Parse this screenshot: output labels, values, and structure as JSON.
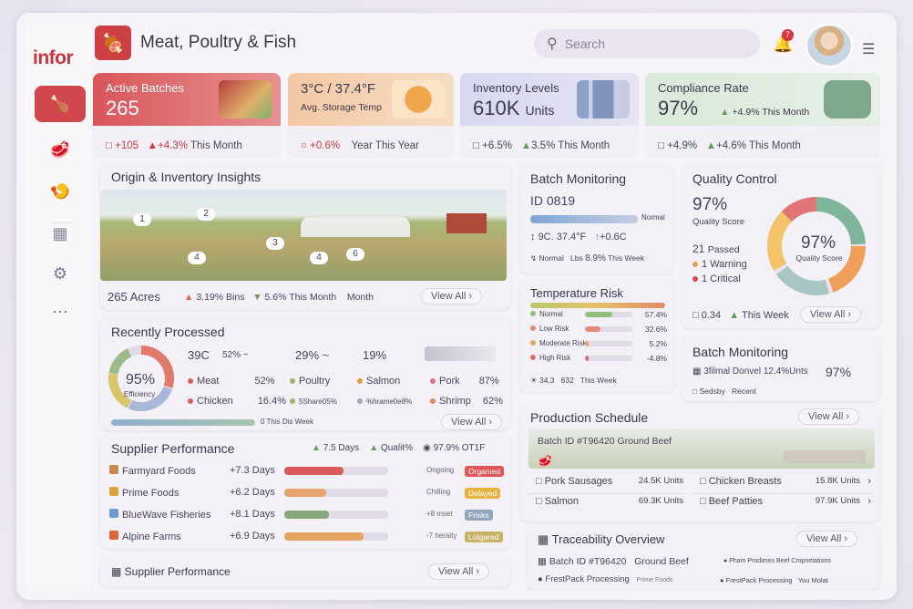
{
  "app": {
    "logo": "infor",
    "title": "Meat, Poultry & Fish",
    "search_placeholder": "Search",
    "notif_count": "7"
  },
  "nav": [
    {
      "icon": "poultry-icon"
    },
    {
      "icon": "meat-icon"
    },
    {
      "icon": "fish-icon"
    },
    {
      "icon": "reports-icon"
    },
    {
      "icon": "settings-icon"
    },
    {
      "icon": "more-icon"
    }
  ],
  "kpis": [
    {
      "label": "Active Batches",
      "value": "265",
      "s1": "+105",
      "s2": "+4.3%",
      "s3": "This Month"
    },
    {
      "label": "3°C / 37.4°F",
      "value": "Avg. Storage Temp",
      "s1": "+0.6%",
      "s2": "Year",
      "s3": "This Year"
    },
    {
      "label": "Inventory Levels",
      "value": "610K",
      "unit": "Units",
      "s1": "+6.5%",
      "s2": "3.5%",
      "s3": "This Month"
    },
    {
      "label": "Compliance Rate",
      "value": "97%",
      "extra": "+4.9% This Month",
      "s1": "+4.9%",
      "s2": "+4.6%",
      "s3": "This Month"
    }
  ],
  "origin": {
    "title": "Origin & Inventory Insights",
    "markers": [
      "1",
      "2",
      "3",
      "4",
      "4",
      "6"
    ],
    "acres": "265 Acres",
    "s1": "3.19% Bins",
    "s2": "5.6% This Month",
    "s3": "Month",
    "view": "View All"
  },
  "batch_mon": {
    "title": "Batch Monitoring",
    "id": "ID 0819",
    "state": "Normal",
    "temp": "9C. 37.4°F",
    "delta": "+0.6C",
    "f1": "Normal",
    "f2": "Lbs",
    "f3": "8.9%",
    "f4": "This Week"
  },
  "quality": {
    "title": "Quality Control",
    "score": "97%",
    "score_label": "Quality Score",
    "donut_val": "97%",
    "donut_label": "Quality Score",
    "passed": "21",
    "passed_label": "Passed",
    "warn": "1",
    "warn_label": "Warning",
    "crit": "1",
    "crit_label": "Critical",
    "week_val": "0.34",
    "week": "This Week",
    "view": "View All"
  },
  "recent": {
    "title": "Recently Processed",
    "efficiency": "95%",
    "eff_label": "Efficiency",
    "t1": "39C",
    "t2": "52% ~",
    "t3": "29% ~",
    "t4": "19%",
    "items": [
      {
        "name": "Meat",
        "val": "52%"
      },
      {
        "name": "Poultry",
        "val": ""
      },
      {
        "name": "Salmon",
        "val": ""
      },
      {
        "name": "Pork",
        "val": "87%"
      },
      {
        "name": "Chicken",
        "val": "16.4%"
      },
      {
        "name": "5Share05%",
        "val": ""
      },
      {
        "name": "%hrame0e8%",
        "val": ""
      },
      {
        "name": "Shrimp",
        "val": "62%"
      }
    ],
    "foot": "0 This Dis Week",
    "view": "View All"
  },
  "temp_risk": {
    "title": "Temperature Risk",
    "rows": [
      {
        "label": "Normal",
        "val": "57.4%",
        "pct": 0.57,
        "color": "#8fbf7a"
      },
      {
        "label": "Low Risk",
        "val": "32.6%",
        "pct": 0.33,
        "color": "#e38a7e"
      },
      {
        "label": "Moderate Risk",
        "val": "5.2%",
        "pct": 0.05,
        "color": "#e6a16a"
      },
      {
        "label": "High Risk",
        "val": "-4.8%",
        "pct": 0.05,
        "color": "#dc6d6a"
      }
    ],
    "f1": "34.3",
    "f2": "632",
    "f3": "This Week"
  },
  "batch_mon2": {
    "title": "Batch Monitoring",
    "line": "3filmal Donvel 12.4%Unts",
    "val": "97%",
    "l1": "Sedsby",
    "l2": "Recent"
  },
  "supplier": {
    "title": "Supplier Performance",
    "h1": "7.5 Days",
    "h2": "Qualit%",
    "h3": "97.9% OT1F",
    "rows": [
      {
        "name": "Farmyard Foods",
        "days": "+7.3 Days",
        "pct": 0.57,
        "color": "#d85a5a",
        "status": "Ongoing",
        "tag": "Organied",
        "tagc": "#e05656"
      },
      {
        "name": "Prime Foods",
        "days": "+6.2 Days",
        "pct": 0.4,
        "color": "#e7a56d",
        "status": "Chilling",
        "tag": "Delayed",
        "tagc": "#e8b23f"
      },
      {
        "name": "BlueWave Fisheries",
        "days": "+8.1 Days",
        "pct": 0.43,
        "color": "#86a87a",
        "status": "+8 mset",
        "tag": "Frisks",
        "tagc": "#8fa6bc"
      },
      {
        "name": "Alpine Farms",
        "days": "+6.9 Days",
        "pct": 0.76,
        "color": "#e7a45f",
        "status": "-7 heraity",
        "tag": "Lotgared",
        "tagc": "#c8b264"
      }
    ]
  },
  "supplier2": {
    "title": "Supplier Performance",
    "view": "View All"
  },
  "production": {
    "title": "Production Schedule",
    "view": "View All",
    "batch": "Batch ID #T96420 Ground Beef",
    "items": [
      {
        "name": "Pork Sausages",
        "val": "24.5K Units"
      },
      {
        "name": "Chicken Breasts",
        "val": "15.8K Units"
      },
      {
        "name": "Salmon",
        "val": "69.3K Units"
      },
      {
        "name": "Beef Patties",
        "val": "97.9K Units"
      }
    ]
  },
  "trace": {
    "title": "Traceability Overview",
    "view": "View All",
    "r1a": "Batch ID #T96420",
    "r1b": "Ground Beef",
    "r1c": "Pham Prodimes Beef Cropnetations",
    "r2a": "FrestPack Processing",
    "r2b": "Prime Foods",
    "r2c": "FrestPack Processing",
    "r2d": "You Molat"
  }
}
